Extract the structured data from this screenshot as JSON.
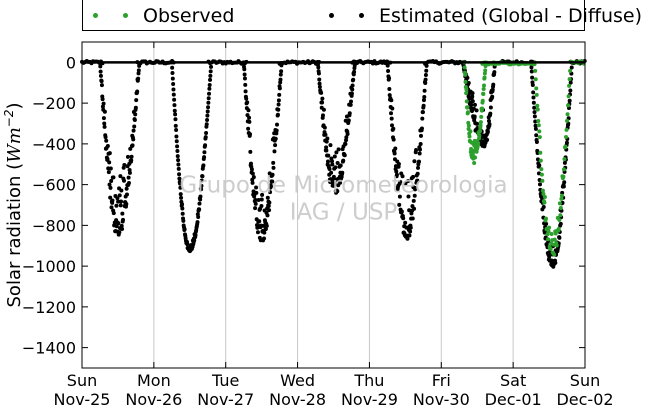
{
  "chart_data": {
    "type": "scatter",
    "title": "",
    "xlabel": "",
    "ylabel": "Solar radiation (Wm⁻²)",
    "ylabel_main": "Solar radiation (",
    "ylabel_unit": "Wm",
    "ylabel_exp": "−2",
    "ylabel_close": ")",
    "ylim": [
      -1500,
      100
    ],
    "xlim": [
      0,
      7
    ],
    "yticks": [
      0,
      -200,
      -400,
      -600,
      -800,
      -1000,
      -1200,
      -1400
    ],
    "xticks": [
      {
        "day": "Sun",
        "date": "Nov-25",
        "x": 0
      },
      {
        "day": "Mon",
        "date": "Nov-26",
        "x": 1
      },
      {
        "day": "Tue",
        "date": "Nov-27",
        "x": 2
      },
      {
        "day": "Wed",
        "date": "Nov-28",
        "x": 3
      },
      {
        "day": "Thu",
        "date": "Nov-29",
        "x": 4
      },
      {
        "day": "Fri",
        "date": "Nov-30",
        "x": 5
      },
      {
        "day": "Sat",
        "date": "Dec-01",
        "x": 6
      },
      {
        "day": "Sun",
        "date": "Dec-02",
        "x": 7
      }
    ],
    "grid": "vertical",
    "legend_placement": "top",
    "watermark": [
      "Grupo de Micrometeorologia",
      "IAG / USP"
    ],
    "series": [
      {
        "name": "Observed",
        "color": "#2ca02c",
        "days": [
          {
            "day": 5,
            "start": 0.32,
            "end": 0.62,
            "peak": 0.45,
            "min": -500,
            "noise": 0.25
          },
          {
            "day": 6,
            "start": 0.3,
            "end": 0.8,
            "peak": 0.55,
            "min": -960,
            "noise": 0.12
          }
        ]
      },
      {
        "name": "Estimated (Global - Diffuse)",
        "color": "#000000",
        "days": [
          {
            "day": 0,
            "start": 0.25,
            "end": 0.8,
            "peak": 0.5,
            "min": -860,
            "noise": 0.35
          },
          {
            "day": 1,
            "start": 0.25,
            "end": 0.8,
            "peak": 0.5,
            "min": -930,
            "noise": 0.04
          },
          {
            "day": 2,
            "start": 0.25,
            "end": 0.78,
            "peak": 0.5,
            "min": -880,
            "noise": 0.35
          },
          {
            "day": 3,
            "start": 0.28,
            "end": 0.8,
            "peak": 0.52,
            "min": -650,
            "noise": 0.35
          },
          {
            "day": 4,
            "start": 0.25,
            "end": 0.8,
            "peak": 0.52,
            "min": -870,
            "noise": 0.35
          },
          {
            "day": 5,
            "start": 0.3,
            "end": 0.75,
            "peak": 0.6,
            "min": -420,
            "noise": 0.45
          },
          {
            "day": 6,
            "start": 0.25,
            "end": 0.82,
            "peak": 0.55,
            "min": -1010,
            "noise": 0.12
          }
        ]
      }
    ]
  }
}
